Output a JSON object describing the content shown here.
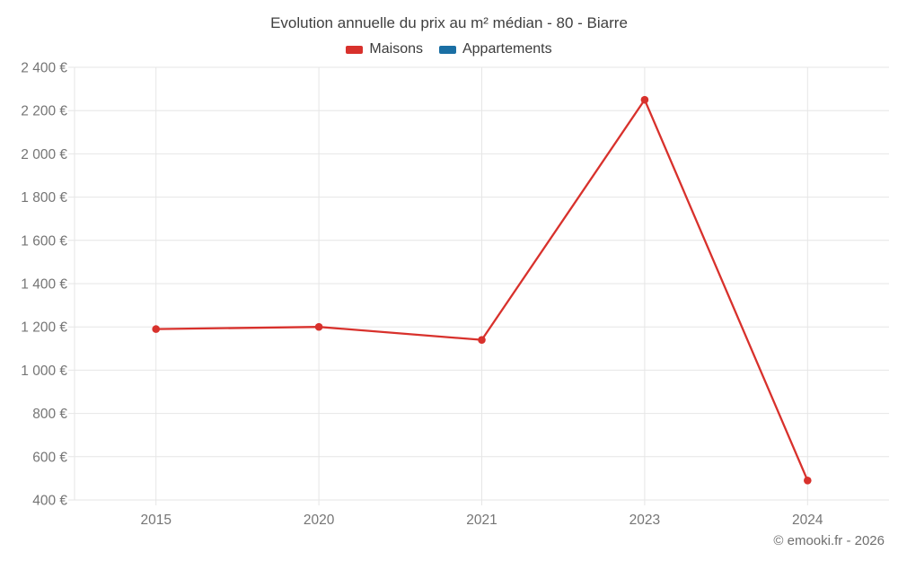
{
  "header": {
    "title": "Evolution annuelle du prix au m² médian - 80 - Biarre"
  },
  "legend": {
    "items": [
      {
        "label": "Maisons",
        "color": "#d8312c",
        "swatch_icon": "legend-swatch-maisons"
      },
      {
        "label": "Appartements",
        "color": "#1a6fa4",
        "swatch_icon": "legend-swatch-appartements"
      }
    ]
  },
  "footer": {
    "credit": "© emooki.fr - 2026"
  },
  "chart_data": {
    "type": "line",
    "title": "Evolution annuelle du prix au m² médian - 80 - Biarre",
    "categories": [
      "2015",
      "2020",
      "2021",
      "2023",
      "2024"
    ],
    "series": [
      {
        "name": "Maisons",
        "color": "#d8312c",
        "values": [
          1190,
          1200,
          1140,
          2250,
          490
        ]
      },
      {
        "name": "Appartements",
        "color": "#1a6fa4",
        "values": []
      }
    ],
    "xlabel": "",
    "ylabel": "",
    "ylim": [
      400,
      2400
    ],
    "ytick_step": 200,
    "yticks": [
      400,
      600,
      800,
      1000,
      1200,
      1400,
      1600,
      1800,
      2000,
      2200,
      2400
    ],
    "ytick_labels": [
      "400 €",
      "600 €",
      "800 €",
      "1 000 €",
      "1 200 €",
      "1 400 €",
      "1 600 €",
      "1 800 €",
      "2 000 €",
      "2 200 €",
      "2 400 €"
    ],
    "grid": true,
    "legend_position": "top"
  },
  "colors": {
    "grid": "#e6e6e6",
    "axis_text": "#757575",
    "title_text": "#3f3f3f",
    "background": "#ffffff"
  }
}
